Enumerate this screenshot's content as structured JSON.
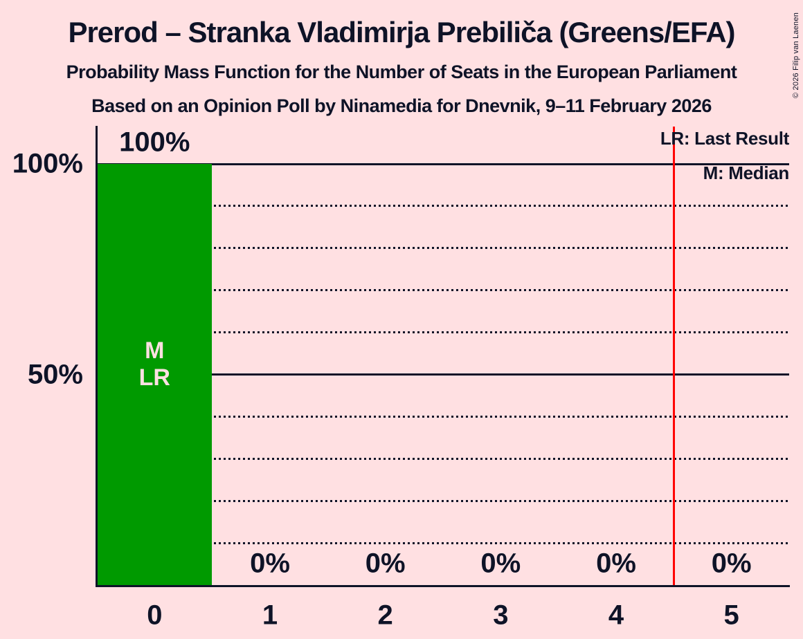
{
  "title": "Prerod – Stranka Vladimirja Prebiliča (Greens/EFA)",
  "subtitle1": "Probability Mass Function for the Number of Seats in the European Parliament",
  "subtitle2": "Based on an Opinion Poll by Ninamedia for Dnevnik, 9–11 February 2026",
  "copyright": "© 2026 Filip van Laenen",
  "legend": {
    "lr": "LR: Last Result",
    "m": "M: Median"
  },
  "colors": {
    "background": "#ffe0e2",
    "text": "#0e1327",
    "bar_green": "#009a00",
    "reference_red": "#ff0000",
    "bar_label_pink": "#ffe0e2"
  },
  "chart_data": {
    "type": "bar",
    "categories": [
      "0",
      "1",
      "2",
      "3",
      "4",
      "5"
    ],
    "values": [
      100,
      0,
      0,
      0,
      0,
      0
    ],
    "bar_labels": [
      "100%",
      "0%",
      "0%",
      "0%",
      "0%",
      "0%"
    ],
    "bar_color": "#009a00",
    "xlabel": "",
    "ylabel": "",
    "ylim": [
      0,
      100
    ],
    "y_axis_labels": [
      {
        "value": 100,
        "label": "100%"
      },
      {
        "value": 50,
        "label": "50%"
      }
    ],
    "solid_gridlines": [
      50,
      100
    ],
    "dotted_gridlines": [
      10,
      20,
      30,
      40,
      60,
      70,
      80,
      90
    ],
    "grid": "horizontal",
    "legend_position": "top-right",
    "median_category": "0",
    "last_result_category": "0",
    "bar_annotations": [
      {
        "category": "0",
        "lines": [
          "M",
          "LR"
        ]
      }
    ],
    "reference_line": {
      "x": 4.5,
      "color": "#ff0000"
    }
  }
}
